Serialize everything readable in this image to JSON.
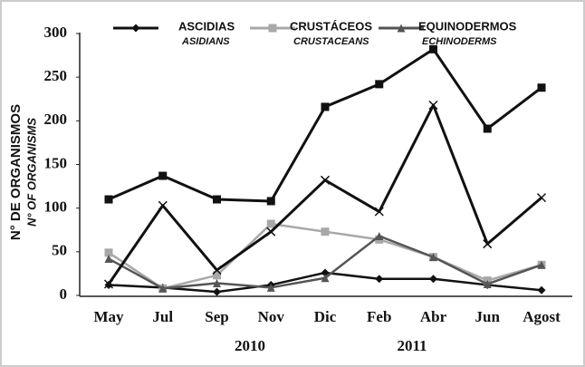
{
  "chart_data": {
    "type": "line",
    "ylabel": "N° DE ORGANISMOS",
    "ylabel_en": "N° OF ORGANISMS",
    "categories": [
      "May",
      "Jul",
      "Sep",
      "Nov",
      "Dic",
      "Feb",
      "Abr",
      "Jun",
      "Agost"
    ],
    "annotations": [
      "2010",
      "2011"
    ],
    "ylim": [
      0,
      300
    ],
    "yticks": [
      0,
      50,
      100,
      150,
      200,
      250,
      300
    ],
    "series": [
      {
        "name": "ASCIDIAS",
        "name_en": "ASIDIANS",
        "color": "#111111",
        "marker": "diamond",
        "values": [
          12,
          9,
          4,
          12,
          26,
          19,
          19,
          12,
          6
        ]
      },
      {
        "name": "CRUSTÁCEOS",
        "name_en": "CRUSTACEANS",
        "color": "#a8a8a8",
        "marker": "square",
        "values": [
          49,
          8,
          23,
          82,
          73,
          64,
          44,
          17,
          35
        ]
      },
      {
        "name": "EQUINODERMOS",
        "name_en": "ECHINODERMS",
        "color": "#555555",
        "marker": "triangle",
        "values": [
          42,
          8,
          14,
          9,
          20,
          68,
          44,
          13,
          35
        ]
      },
      {
        "color": "#111111",
        "marker": "square",
        "values": [
          110,
          137,
          110,
          108,
          216,
          242,
          282,
          191,
          238
        ]
      },
      {
        "color": "#111111",
        "marker": "x",
        "values": [
          13,
          103,
          29,
          73,
          132,
          96,
          218,
          59,
          112
        ]
      }
    ]
  }
}
